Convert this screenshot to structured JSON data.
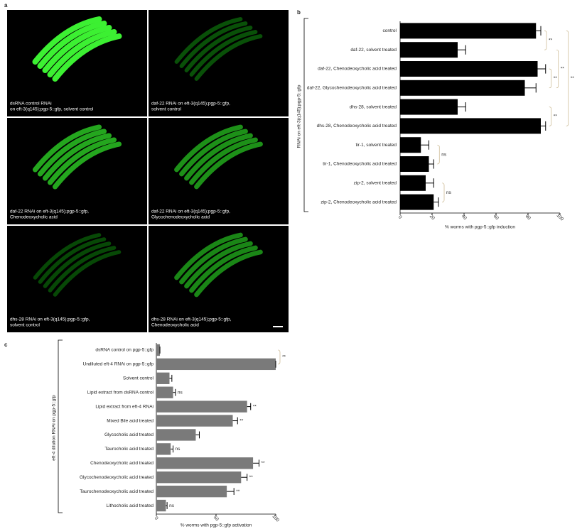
{
  "panel_labels": [
    "a",
    "b",
    "c"
  ],
  "images": [
    {
      "caption": [
        "dsRNA control RNAi",
        "on eft-3(q145);pgp-5::gfp, solvent control"
      ]
    },
    {
      "caption": [
        "daf-22 RNAi on eft-3(q145);pgp-5::gfp,",
        "solvent control"
      ]
    },
    {
      "caption": [
        "daf-22 RNAi on eft-3(q145);pgp-5::gfp,",
        "Chenodeoxycholic acid"
      ]
    },
    {
      "caption": [
        "daf-22 RNAi on eft-3(q145);pgp-5::gfp,",
        "Glycochenodeoxycholic acid"
      ]
    },
    {
      "caption": [
        "dhs-28 RNAi on eft-3(q145);pgp-5::gfp,",
        "solvent control"
      ]
    },
    {
      "caption": [
        "dhs-28 RNAi on eft-3(q145);pgp-5::gfp,",
        "Chenodeoxycholic acid"
      ]
    }
  ],
  "chart_data": [
    {
      "type": "bar",
      "orientation": "horizontal",
      "ylabel": "RNAi on eft-3(q145);pgp-5::gfp",
      "xlabel": "% worms with pgp-5::gfp induction",
      "categories": [
        "control",
        "daf-22, solvent treated",
        "daf-22, Chenodeoxycholic acid treated",
        "daf-22, Glycochenodeoxycholic acid treated",
        "dhs-28, solvent treated",
        "dhs-28, Chenodeoxycholic acid treated",
        "tir-1, solvent treated",
        "tir-1, Chenodeoxycholic acid treated",
        "zip-2, solvent treated",
        "zip-2, Chenodeoxycholic acid treated"
      ],
      "values": [
        85,
        36,
        86,
        78,
        36,
        88,
        13,
        18,
        16,
        21
      ],
      "errors": [
        3,
        5,
        5,
        7,
        5,
        3,
        5,
        3,
        5,
        3
      ],
      "color": "#000000",
      "xlim": [
        0,
        100
      ],
      "xticks": [
        0,
        20,
        40,
        60,
        80,
        100
      ],
      "annotations": [
        "**",
        "**",
        "**",
        "**",
        "ns",
        "ns",
        "**"
      ]
    },
    {
      "type": "bar",
      "orientation": "horizontal",
      "ylabel": "eft-4 dilution RNAi on pgp-5::gfp",
      "xlabel": "% worms with pgp-5::gfp activation",
      "categories": [
        "dsRNA control on pgp-5::gfp",
        "Undiluted eft-4 RNAi on pgp-5::gfp",
        "Solvent control",
        "Lipid extract from dsRNA control",
        "Lipid extract from eft-4 RNAi",
        "Mixed Bile acid treated",
        "Glycocholic acid treated",
        "Taurocholic acid treated",
        "Chenodeoxycholic acid treated",
        "Glycochenodeoxycholic acid treated",
        "Taurochenodeoxycholic acid treated",
        "Lithocholic acid treated"
      ],
      "values": [
        3,
        100,
        11,
        14,
        76,
        64,
        33,
        12,
        81,
        71,
        59,
        8
      ],
      "errors": [
        0,
        0,
        2,
        2,
        3,
        4,
        3,
        2,
        5,
        5,
        6,
        1
      ],
      "color": "#7a7a7a",
      "xlim": [
        0,
        100
      ],
      "xticks": [
        0,
        50,
        100
      ],
      "annotations": [
        "**",
        "ns",
        "**",
        "**",
        "ns",
        "**",
        "**",
        "**",
        "ns"
      ]
    }
  ]
}
